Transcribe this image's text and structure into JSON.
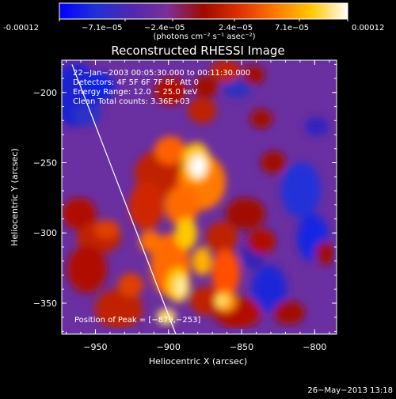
{
  "colorbar": {
    "ticks": [
      "-0.00012",
      "−7.1e−05",
      "−2.4e−05",
      "2.4e−05",
      "7.1e−05",
      "0.00012"
    ],
    "unit_label": "(photons cm⁻² s⁻¹ asec⁻²)"
  },
  "info": {
    "line1": "22−Jan−2003 00:05:30.000 to 00:11:30.000",
    "line2": "Detectors: 4F 5F 6F 7F 8F, Att 0",
    "line3": "Energy Range: 12.0 − 25.0 keV",
    "line4": "Clean    Total counts: 3.36E+03",
    "peak": "Position of Peak = [−879,−253]"
  },
  "footer_date": "26−May−2013 13:18",
  "chart_data": {
    "type": "heatmap",
    "title": "Reconstructed RHESSI Image",
    "xlabel": "Heliocentric X (arcsec)",
    "ylabel": "Heliocentric Y (arcsec)",
    "xlim": [
      -973,
      -785
    ],
    "ylim": [
      -372,
      -177
    ],
    "xticks": [
      -950,
      -900,
      -850,
      -800
    ],
    "xtick_labels": [
      "−950",
      "−900",
      "−850",
      "−800"
    ],
    "yticks": [
      -200,
      -250,
      -300,
      -350
    ],
    "ytick_labels": [
      "−200",
      "−250",
      "−300",
      "−350"
    ],
    "color_range": [
      -0.00012,
      0.00012
    ],
    "peak_position": [
      -879,
      -253
    ],
    "limb_line": [
      [
        -966,
        -180
      ],
      [
        -895,
        -372
      ]
    ],
    "colors": {
      "stops": [
        "#0000ff",
        "#2030d8",
        "#5028b0",
        "#7a3098",
        "#a00a00",
        "#e03000",
        "#ff7a00",
        "#ffc800",
        "#ffffff"
      ],
      "line": "#ffffff"
    }
  }
}
